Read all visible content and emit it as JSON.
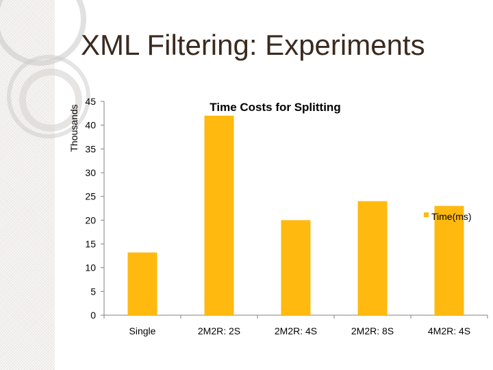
{
  "slide": {
    "title": "XML Filtering: Experiments"
  },
  "colors": {
    "bar": "#FFB90F",
    "axis": "#808080",
    "title": "#3a2a1f"
  },
  "chart_data": {
    "type": "bar",
    "title": "Time Costs for Splitting",
    "xlabel": "",
    "ylabel": "Thousands",
    "categories": [
      "Single",
      "2M2R: 2S",
      "2M2R: 4S",
      "2M2R: 8S",
      "4M2R: 4S"
    ],
    "series": [
      {
        "name": "Time(ms)",
        "values": [
          13.2,
          42,
          20,
          24,
          23
        ]
      }
    ],
    "yticks": [
      "0",
      "5",
      "10",
      "15",
      "20",
      "25",
      "30",
      "35",
      "40",
      "45"
    ],
    "ylim": [
      0,
      45
    ],
    "grid": false,
    "legend": "right"
  }
}
